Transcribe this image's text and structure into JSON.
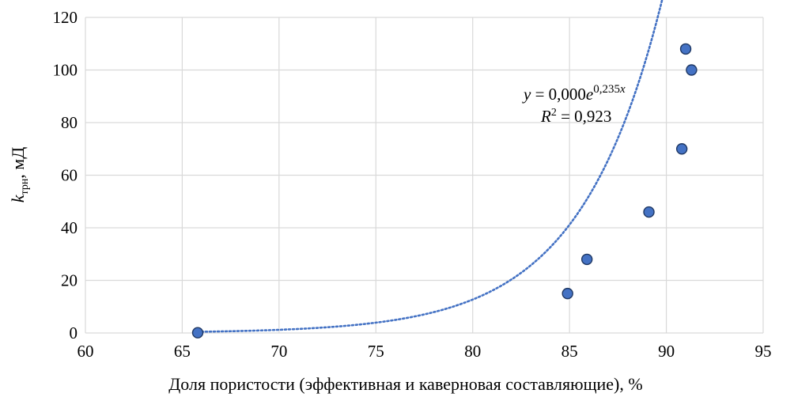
{
  "chart_data": {
    "type": "scatter",
    "title": "",
    "xlabel": "Доля пористости (эффективная и каверновая составляющие), %",
    "ylabel": {
      "k_symbol": "k",
      "k_subscript": "трн",
      "suffix": ",  мД"
    },
    "xlim": [
      60,
      95
    ],
    "ylim": [
      0,
      120
    ],
    "x_ticks": [
      60,
      65,
      70,
      75,
      80,
      85,
      90,
      95
    ],
    "y_ticks": [
      0,
      20,
      40,
      60,
      80,
      100,
      120
    ],
    "grid": true,
    "legend": "none",
    "series": [
      {
        "x": [
          65.8,
          84.9,
          85.9,
          89.1,
          90.8,
          91.0,
          91.3
        ],
        "y": [
          0.1,
          15,
          28,
          46,
          70,
          108,
          100
        ],
        "color": "#4472C4",
        "edge_color": "#1F3864"
      }
    ],
    "trendline": {
      "type": "exponential",
      "coef_a": 8.7e-08,
      "coef_b": 0.235,
      "x_range": [
        65.8,
        91.2
      ],
      "color": "#4472C4",
      "style": "dotted"
    },
    "annotations": {
      "equation": {
        "y": "y",
        "eq": " = 0,000",
        "e": "e",
        "exp_num": "0,235",
        "exp_x": "x"
      },
      "r2": {
        "R": "R",
        "sup": "2",
        "rest": " = 0,923"
      }
    }
  }
}
